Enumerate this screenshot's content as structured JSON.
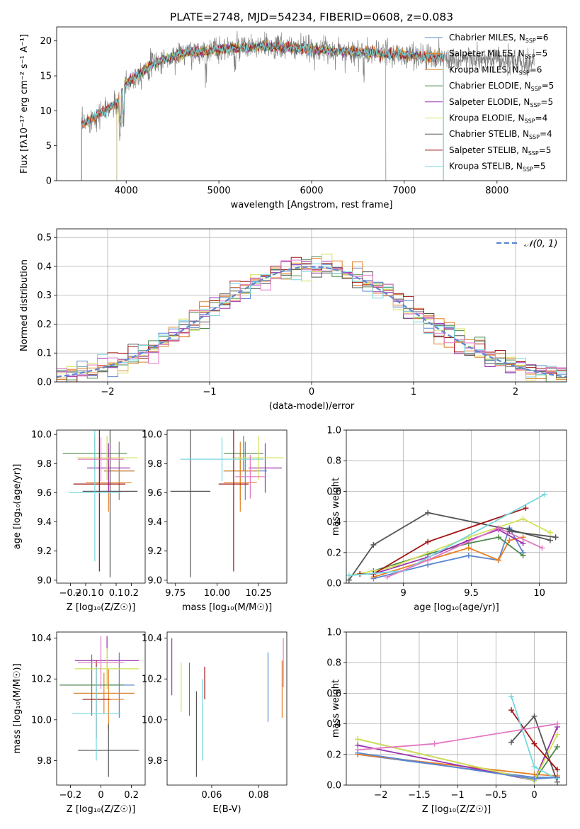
{
  "title": "PLATE=2748, MJD=54234, FIBERID=0608, z=0.083",
  "colors": {
    "Chabrier MILES": "#5b86d0",
    "Salpeter MILES": "#e67e22",
    "Kroupa MILES": "#d9822b",
    "Chabrier ELODIE": "#4e8a4e",
    "Salpeter ELODIE": "#9b30b0",
    "Kroupa ELODIE": "#d4e157",
    "Chabrier STELIB": "#555555",
    "Salpeter STELIB": "#a31515",
    "Kroupa STELIB": "#76d7e0",
    "Extra": "#e377c2"
  },
  "chart_data": [
    {
      "type": "line",
      "title": "PLATE=2748, MJD=54234, FIBERID=0608, z=0.083",
      "xlabel": "wavelength [Angstrom, rest frame]",
      "ylabel": "Flux [fλ10⁻¹⁷ erg cm⁻² s⁻¹ A⁻¹]",
      "xlim": [
        3250,
        8750
      ],
      "ylim": [
        0,
        22
      ],
      "xticks": [
        4000,
        5000,
        6000,
        7000,
        8000
      ],
      "yticks": [
        0,
        5,
        10,
        15,
        20
      ],
      "grid": false,
      "legend_position": "right",
      "continuum": {
        "x": [
          3520,
          3700,
          3900,
          4000,
          4300,
          4600,
          5000,
          5500,
          6000,
          6500,
          7000,
          7500,
          8000,
          8400
        ],
        "y": [
          8,
          9.5,
          11,
          14,
          16.8,
          18.2,
          18.8,
          19.2,
          18.8,
          18.4,
          18,
          17.5,
          17.1,
          16.8
        ]
      },
      "model_range": [
        3520,
        7420
      ],
      "series": [
        {
          "name": "Chabrier MILES, N",
          "sub": "SSP",
          "suffix": "=6"
        },
        {
          "name": "Salpeter MILES, N",
          "sub": "SSP",
          "suffix": "=5"
        },
        {
          "name": "Kroupa MILES, N",
          "sub": "SSP",
          "suffix": "=6"
        },
        {
          "name": "Chabrier ELODIE, N",
          "sub": "SSP",
          "suffix": "=5"
        },
        {
          "name": "Salpeter ELODIE, N",
          "sub": "SSP",
          "suffix": "=5"
        },
        {
          "name": "Kroupa ELODIE, N",
          "sub": "SSP",
          "suffix": "=4"
        },
        {
          "name": "Chabrier STELIB, N",
          "sub": "SSP",
          "suffix": "=4"
        },
        {
          "name": "Salpeter STELIB, N",
          "sub": "SSP",
          "suffix": "=5"
        },
        {
          "name": "Kroupa STELIB, N",
          "sub": "SSP",
          "suffix": "=5"
        }
      ]
    },
    {
      "type": "histogram",
      "xlabel": "(data-model)/error",
      "ylabel": "Normed distribution",
      "xlim": [
        -2.5,
        2.5
      ],
      "ylim": [
        0,
        0.53
      ],
      "xticks": [
        -2,
        -1,
        0,
        1,
        2
      ],
      "yticks": [
        0.0,
        0.1,
        0.2,
        0.3,
        0.4,
        0.5
      ],
      "grid": true,
      "legend": "𝒩(0, 1)",
      "legend_position": "top-right",
      "bin_width": 0.1
    },
    {
      "type": "errorbar",
      "xlabel": "Z [log₁₀(Z/Z☉)]",
      "ylabel": "age  [log₁₀(age/yr)]",
      "xlim": [
        -0.29,
        0.29
      ],
      "ylim": [
        8.98,
        10.03
      ],
      "xticks": [
        -0.2,
        -0.1,
        0.0,
        0.1,
        0.2
      ],
      "yticks": [
        9.0,
        9.2,
        9.4,
        9.6,
        9.8,
        10.0
      ],
      "points": [
        {
          "c": "Chabrier MILES",
          "x": 0.12,
          "y": 9.75,
          "xe": 0.1,
          "ye": 0.2
        },
        {
          "c": "Salpeter MILES",
          "x": 0.05,
          "y": 9.67,
          "xe": 0.15,
          "ye": 0.2
        },
        {
          "c": "Kroupa MILES",
          "x": 0.12,
          "y": 9.75,
          "xe": 0.1,
          "ye": 0.2
        },
        {
          "c": "Chabrier ELODIE",
          "x": -0.04,
          "y": 9.87,
          "xe": 0.21,
          "ye": 0.12
        },
        {
          "c": "Salpeter ELODIE",
          "x": 0.05,
          "y": 9.77,
          "xe": 0.14,
          "ye": 0.17
        },
        {
          "c": "Kroupa ELODIE",
          "x": 0.04,
          "y": 9.84,
          "xe": 0.2,
          "ye": 0.15
        },
        {
          "c": "Chabrier STELIB",
          "x": 0.06,
          "y": 9.61,
          "xe": 0.18,
          "ye": 0.59
        },
        {
          "c": "Salpeter STELIB",
          "x": -0.01,
          "y": 9.66,
          "xe": 0.17,
          "ye": 0.6
        },
        {
          "c": "Kroupa STELIB",
          "x": -0.04,
          "y": 9.6,
          "xe": 0.17,
          "ye": 0.47
        },
        {
          "c": "Extra",
          "x": 0.0,
          "y": 9.83,
          "xe": 0.15,
          "ye": 0.15
        }
      ]
    },
    {
      "type": "errorbar",
      "xlabel": "mass [log₁₀(M/M☉)]",
      "ylabel": "",
      "xlim": [
        9.7,
        10.42
      ],
      "ylim": [
        8.98,
        10.03
      ],
      "xticks": [
        9.75,
        10.0,
        10.25
      ],
      "xticklabels": [
        "9.75",
        "10.00",
        "10.25"
      ],
      "yticks": [
        9.0,
        9.2,
        9.4,
        9.6,
        9.8,
        10.0
      ],
      "points": [
        {
          "c": "Chabrier MILES",
          "x": 10.17,
          "y": 9.75,
          "xe": 0.13,
          "ye": 0.2
        },
        {
          "c": "Salpeter MILES",
          "x": 10.14,
          "y": 9.67,
          "xe": 0.1,
          "ye": 0.2
        },
        {
          "c": "Kroupa MILES",
          "x": 10.14,
          "y": 9.75,
          "xe": 0.1,
          "ye": 0.2
        },
        {
          "c": "Chabrier ELODIE",
          "x": 10.16,
          "y": 9.87,
          "xe": 0.12,
          "ye": 0.12
        },
        {
          "c": "Salpeter ELODIE",
          "x": 10.29,
          "y": 9.77,
          "xe": 0.1,
          "ye": 0.17
        },
        {
          "c": "Kroupa ELODIE",
          "x": 10.25,
          "y": 9.84,
          "xe": 0.15,
          "ye": 0.15
        },
        {
          "c": "Chabrier STELIB",
          "x": 9.84,
          "y": 9.61,
          "xe": 0.12,
          "ye": 0.59
        },
        {
          "c": "Salpeter STELIB",
          "x": 10.1,
          "y": 9.66,
          "xe": 0.09,
          "ye": 0.6
        },
        {
          "c": "Kroupa STELIB",
          "x": 10.03,
          "y": 9.83,
          "xe": 0.25,
          "ye": 0.15
        },
        {
          "c": "Extra",
          "x": 10.2,
          "y": 9.71,
          "xe": 0.09,
          "ye": 0.15
        }
      ]
    },
    {
      "type": "line",
      "xlabel": "age  [log₁₀(age/yr)]",
      "ylabel": "mass weight",
      "xlim": [
        8.58,
        10.2
      ],
      "ylim": [
        0,
        1
      ],
      "xticks": [
        9.0,
        9.5,
        10.0
      ],
      "yticks": [
        0.0,
        0.2,
        0.4,
        0.6,
        0.8,
        1.0
      ],
      "grid": true,
      "series": [
        {
          "c": "Chabrier MILES",
          "x": [
            8.78,
            9.18,
            9.48,
            9.7,
            9.78,
            9.88
          ],
          "y": [
            0.03,
            0.12,
            0.18,
            0.15,
            0.36,
            0.2
          ]
        },
        {
          "c": "Salpeter MILES",
          "x": [
            8.78,
            9.18,
            9.48,
            9.7,
            9.78,
            9.88
          ],
          "y": [
            0.04,
            0.15,
            0.23,
            0.15,
            0.28,
            0.3
          ]
        },
        {
          "c": "Chabrier ELODIE",
          "x": [
            8.78,
            9.18,
            9.48,
            9.7,
            9.88
          ],
          "y": [
            0.08,
            0.19,
            0.26,
            0.3,
            0.18
          ]
        },
        {
          "c": "Salpeter ELODIE",
          "x": [
            8.78,
            9.18,
            9.48,
            9.7,
            9.88
          ],
          "y": [
            0.06,
            0.17,
            0.28,
            0.35,
            0.26
          ]
        },
        {
          "c": "Kroupa ELODIE",
          "x": [
            8.6,
            8.9,
            9.48,
            9.88,
            10.08
          ],
          "y": [
            0.05,
            0.1,
            0.3,
            0.42,
            0.33
          ]
        },
        {
          "c": "Chabrier STELIB",
          "x": [
            8.6,
            8.78,
            9.18,
            9.78,
            10.08
          ],
          "y": [
            0.02,
            0.25,
            0.46,
            0.35,
            0.28
          ]
        },
        {
          "c": "Salpeter STELIB",
          "x": [
            8.68,
            8.78,
            9.18,
            9.9
          ],
          "y": [
            0.06,
            0.06,
            0.27,
            0.49
          ]
        },
        {
          "c": "Kroupa STELIB",
          "x": [
            8.6,
            9.0,
            10.04
          ],
          "y": [
            0.05,
            0.08,
            0.58
          ]
        },
        {
          "c": "Extra",
          "x": [
            8.88,
            9.18,
            9.7,
            10.02
          ],
          "y": [
            0.04,
            0.15,
            0.36,
            0.23
          ]
        },
        {
          "c": "Chabrier STELIB",
          "x": [
            9.78,
            10.12
          ],
          "y": [
            0.34,
            0.3
          ]
        }
      ]
    },
    {
      "type": "errorbar",
      "xlabel": "Z [log₁₀(Z/Z☉)]",
      "ylabel": "mass [log₁₀(M/M☉)]",
      "xlim": [
        -0.29,
        0.29
      ],
      "ylim": [
        9.68,
        10.43
      ],
      "xticks": [
        -0.2,
        0.0,
        0.2
      ],
      "yticks": [
        9.8,
        10.0,
        10.2,
        10.4
      ],
      "points": [
        {
          "c": "Chabrier MILES",
          "x": 0.12,
          "y": 10.17,
          "xe": 0.1,
          "ye": 0.16
        },
        {
          "c": "Salpeter MILES",
          "x": 0.05,
          "y": 10.1,
          "xe": 0.1,
          "ye": 0.15
        },
        {
          "c": "Kroupa MILES",
          "x": 0.02,
          "y": 10.13,
          "xe": 0.2,
          "ye": 0.1
        },
        {
          "c": "Chabrier ELODIE",
          "x": -0.06,
          "y": 10.17,
          "xe": 0.21,
          "ye": 0.15
        },
        {
          "c": "Salpeter ELODIE",
          "x": 0.04,
          "y": 10.29,
          "xe": 0.21,
          "ye": 0.12
        },
        {
          "c": "Kroupa ELODIE",
          "x": 0.04,
          "y": 10.25,
          "xe": 0.21,
          "ye": 0.1
        },
        {
          "c": "Chabrier STELIB",
          "x": 0.05,
          "y": 9.85,
          "xe": 0.2,
          "ye": 0.13
        },
        {
          "c": "Salpeter STELIB",
          "x": -0.03,
          "y": 10.1,
          "xe": 0.09,
          "ye": 0.19
        },
        {
          "c": "Kroupa STELIB",
          "x": -0.03,
          "y": 10.03,
          "xe": 0.16,
          "ye": 0.23
        },
        {
          "c": "Extra",
          "x": 0.0,
          "y": 10.28,
          "xe": 0.15,
          "ye": 0.13
        }
      ]
    },
    {
      "type": "errorbar",
      "xlabel": "E(B-V)",
      "ylabel": "",
      "xlim": [
        0.041,
        0.092
      ],
      "ylim": [
        9.68,
        10.43
      ],
      "xticks": [
        0.06,
        0.08
      ],
      "xticklabels": [
        "0.06",
        "0.08"
      ],
      "yticks": [
        9.8,
        10.0,
        10.2,
        10.4
      ],
      "points": [
        {
          "c": "Chabrier MILES",
          "x": 0.084,
          "y": 10.16,
          "xe": 0,
          "ye": 0.17
        },
        {
          "c": "Salpeter MILES",
          "x": 0.09,
          "y": 10.15,
          "xe": 0,
          "ye": 0.14
        },
        {
          "c": "Chabrier ELODIE",
          "x": 0.0505,
          "y": 10.15,
          "xe": 0,
          "ye": 0.13
        },
        {
          "c": "Salpeter ELODIE",
          "x": 0.043,
          "y": 10.26,
          "xe": 0,
          "ye": 0.14
        },
        {
          "c": "Kroupa ELODIE",
          "x": 0.047,
          "y": 10.16,
          "xe": 0,
          "ye": 0.12
        },
        {
          "c": "Chabrier STELIB",
          "x": 0.0535,
          "y": 9.93,
          "xe": 0,
          "ye": 0.21
        },
        {
          "c": "Salpeter STELIB",
          "x": 0.057,
          "y": 10.18,
          "xe": 0,
          "ye": 0.08
        },
        {
          "c": "Kroupa STELIB",
          "x": 0.056,
          "y": 10.0,
          "xe": 0,
          "ye": 0.2
        },
        {
          "c": "Extra",
          "x": 0.0905,
          "y": 10.28,
          "xe": 0,
          "ye": 0.12
        }
      ]
    },
    {
      "type": "line",
      "xlabel": "Z [log₁₀(Z/Z☉)]",
      "ylabel": "mass weight",
      "xlim": [
        -2.45,
        0.42
      ],
      "ylim": [
        0,
        1
      ],
      "xticks": [
        -2.0,
        -1.5,
        -1.0,
        -0.5,
        0.0
      ],
      "yticks": [
        0.0,
        0.2,
        0.4,
        0.6,
        0.8,
        1.0
      ],
      "grid": true,
      "series": [
        {
          "c": "Chabrier MILES",
          "x": [
            -2.3,
            0,
            0.3
          ],
          "y": [
            0.2,
            0.05,
            0.05
          ]
        },
        {
          "c": "Salpeter MILES",
          "x": [
            -2.3,
            0,
            0.3
          ],
          "y": [
            0.2,
            0.07,
            0.06
          ]
        },
        {
          "c": "Chabrier ELODIE",
          "x": [
            -2.3,
            0,
            0.3
          ],
          "y": [
            0.3,
            0.03,
            0.25
          ]
        },
        {
          "c": "Salpeter ELODIE",
          "x": [
            -2.3,
            0,
            0.3
          ],
          "y": [
            0.26,
            0.03,
            0.38
          ]
        },
        {
          "c": "Kroupa ELODIE",
          "x": [
            -2.3,
            0,
            0.3
          ],
          "y": [
            0.3,
            0.03,
            0.33
          ]
        },
        {
          "c": "Chabrier STELIB",
          "x": [
            -0.3,
            0,
            0.3
          ],
          "y": [
            0.28,
            0.45,
            0.02
          ]
        },
        {
          "c": "Salpeter STELIB",
          "x": [
            -0.3,
            0,
            0.3
          ],
          "y": [
            0.49,
            0.27,
            0.1
          ]
        },
        {
          "c": "Kroupa STELIB",
          "x": [
            -0.3,
            0,
            0.3
          ],
          "y": [
            0.58,
            0.12,
            0.04
          ]
        },
        {
          "c": "Extra",
          "x": [
            -2.3,
            -1.3,
            0.3
          ],
          "y": [
            0.23,
            0.27,
            0.4
          ]
        },
        {
          "c": "Chabrier MILES",
          "x": [
            -2.3,
            0,
            0.3
          ],
          "y": [
            0.21,
            0.04,
            0.05
          ]
        }
      ]
    }
  ]
}
